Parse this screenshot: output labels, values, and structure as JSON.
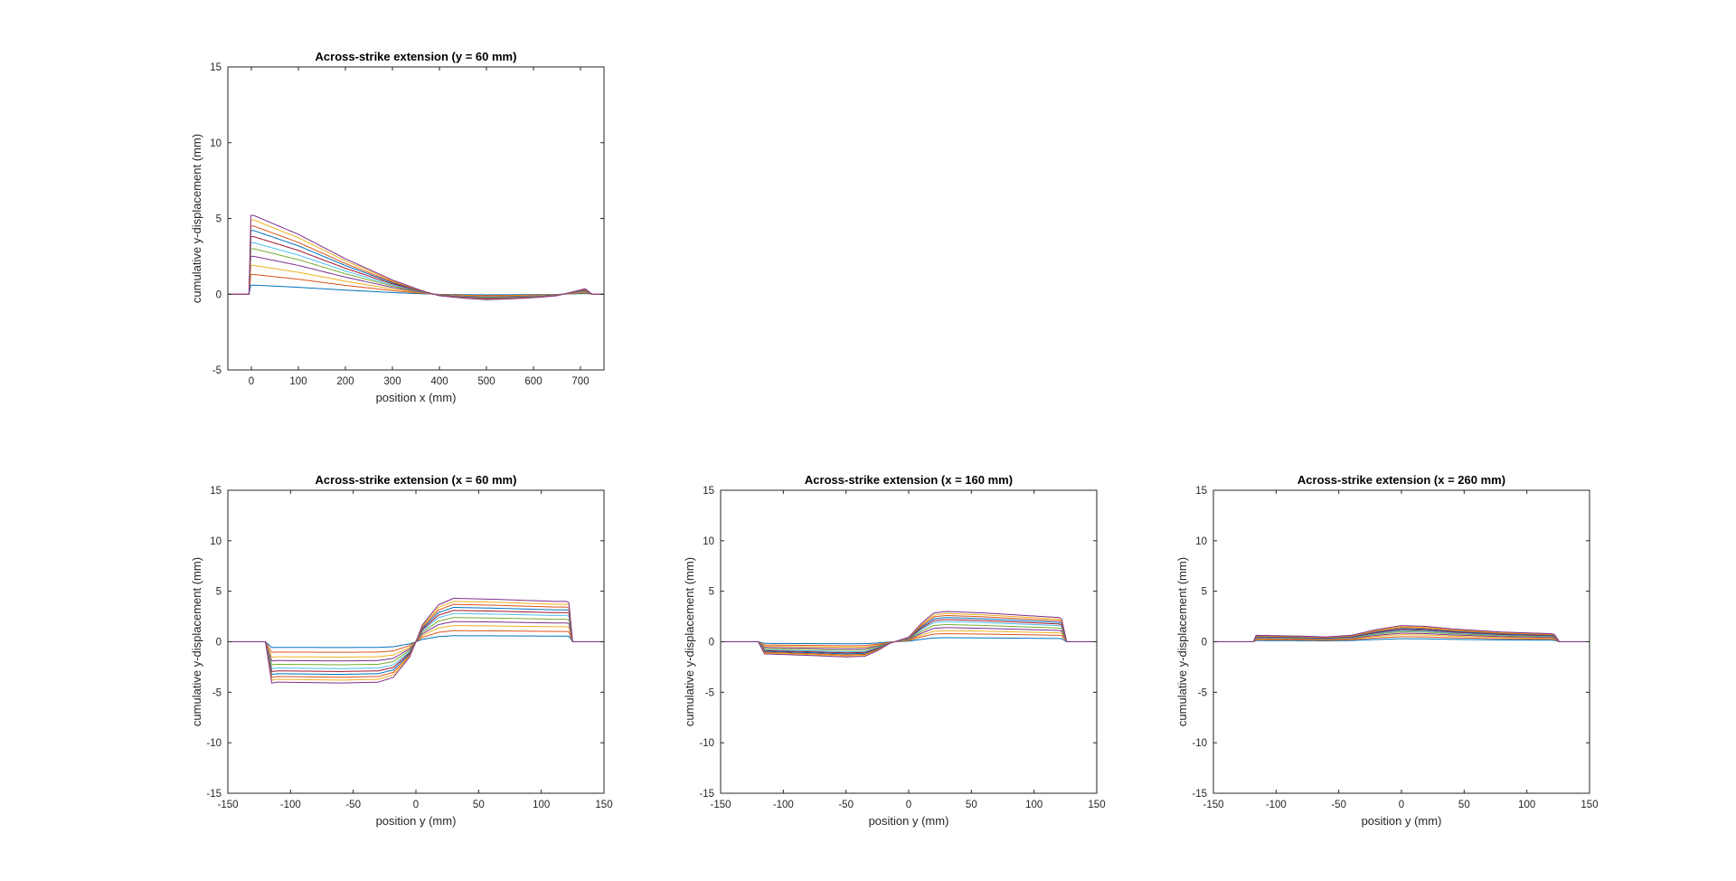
{
  "figure": {
    "background": "#ffffff"
  },
  "series_colors": [
    "#0072BD",
    "#D95319",
    "#EDB120",
    "#7E2F8E",
    "#77AC30",
    "#4DBEEE",
    "#A2142F"
  ],
  "chart_data": [
    {
      "type": "line",
      "title": "Across-strike extension (y = 60 mm)",
      "xlabel": "position x (mm)",
      "ylabel": "cumulative y-displacement (mm)",
      "xlim": [
        -50,
        750
      ],
      "ylim": [
        -5,
        15
      ],
      "xticks": [
        0,
        100,
        200,
        300,
        400,
        500,
        600,
        700
      ],
      "yticks": [
        -5,
        0,
        5,
        10,
        15
      ],
      "grid": false,
      "box": true,
      "profile": {
        "x": [
          -50,
          -5,
          -1,
          5,
          100,
          200,
          300,
          360,
          400,
          450,
          500,
          550,
          600,
          650,
          690,
          710,
          725,
          750
        ],
        "shape": [
          0,
          0,
          1.0,
          1.0,
          0.76,
          0.45,
          0.18,
          0.05,
          -0.02,
          -0.05,
          -0.07,
          -0.06,
          -0.045,
          -0.02,
          0.04,
          0.07,
          0,
          0
        ]
      },
      "series_amplitudes": [
        0.6,
        1.3,
        1.9,
        2.5,
        3.0,
        3.4,
        3.8,
        4.2,
        4.5,
        4.9,
        5.2
      ]
    },
    {
      "type": "line",
      "title": "Across-strike extension (x = 60 mm)",
      "xlabel": "position y (mm)",
      "ylabel": "cumulative y-displacement (mm)",
      "xlim": [
        -150,
        150
      ],
      "ylim": [
        -15,
        15
      ],
      "xticks": [
        -150,
        -100,
        -50,
        0,
        50,
        100,
        150
      ],
      "yticks": [
        -15,
        -10,
        -5,
        0,
        5,
        10,
        15
      ],
      "grid": false,
      "box": true,
      "profile": {
        "x": [
          -150,
          -120,
          -115,
          -110,
          -60,
          -30,
          -18,
          -5,
          0,
          5,
          18,
          30,
          60,
          110,
          120,
          122,
          125,
          150
        ],
        "shape": [
          0,
          0,
          -0.95,
          -0.93,
          -0.95,
          -0.93,
          -0.82,
          -0.35,
          0,
          0.38,
          0.85,
          1.0,
          0.98,
          0.93,
          0.93,
          0.9,
          0,
          0
        ]
      },
      "series_amplitudes": [
        0.6,
        1.1,
        1.6,
        2.0,
        2.4,
        2.8,
        3.1,
        3.4,
        3.7,
        4.0,
        4.3
      ]
    },
    {
      "type": "line",
      "title": "Across-strike extension (x = 160 mm)",
      "xlabel": "position y (mm)",
      "ylabel": "cumulative y-displacement (mm)",
      "xlim": [
        -150,
        150
      ],
      "ylim": [
        -15,
        15
      ],
      "xticks": [
        -150,
        -100,
        -50,
        0,
        50,
        100,
        150
      ],
      "yticks": [
        -15,
        -10,
        -5,
        0,
        5,
        10,
        15
      ],
      "grid": false,
      "box": true,
      "profile": {
        "x": [
          -150,
          -120,
          -115,
          -80,
          -50,
          -35,
          -25,
          -15,
          0,
          10,
          20,
          30,
          60,
          100,
          120,
          122,
          126,
          150
        ],
        "shape": [
          0,
          0,
          -0.4,
          -0.45,
          -0.5,
          -0.48,
          -0.3,
          -0.05,
          0.15,
          0.6,
          0.95,
          1.0,
          0.95,
          0.85,
          0.8,
          0.75,
          0,
          0
        ]
      },
      "series_amplitudes": [
        0.4,
        0.8,
        1.1,
        1.4,
        1.7,
        2.0,
        2.2,
        2.4,
        2.6,
        2.8,
        3.0
      ]
    },
    {
      "type": "line",
      "title": "Across-strike extension (x = 260 mm)",
      "xlabel": "position y (mm)",
      "ylabel": "cumulative y-displacement (mm)",
      "xlim": [
        -150,
        150
      ],
      "ylim": [
        -15,
        15
      ],
      "xticks": [
        -150,
        -100,
        -50,
        0,
        50,
        100,
        150
      ],
      "yticks": [
        -15,
        -10,
        -5,
        0,
        5,
        10,
        15
      ],
      "grid": false,
      "box": true,
      "profile": {
        "x": [
          -150,
          -118,
          -116,
          -80,
          -60,
          -40,
          -20,
          0,
          20,
          40,
          80,
          120,
          122,
          126,
          150
        ],
        "shape": [
          0,
          0,
          0.4,
          0.35,
          0.3,
          0.4,
          0.75,
          1.0,
          0.95,
          0.8,
          0.6,
          0.5,
          0.45,
          0,
          0
        ]
      },
      "series_amplitudes": [
        0.3,
        0.5,
        0.7,
        0.85,
        1.0,
        1.1,
        1.2,
        1.3,
        1.4,
        1.5,
        1.6
      ]
    }
  ]
}
